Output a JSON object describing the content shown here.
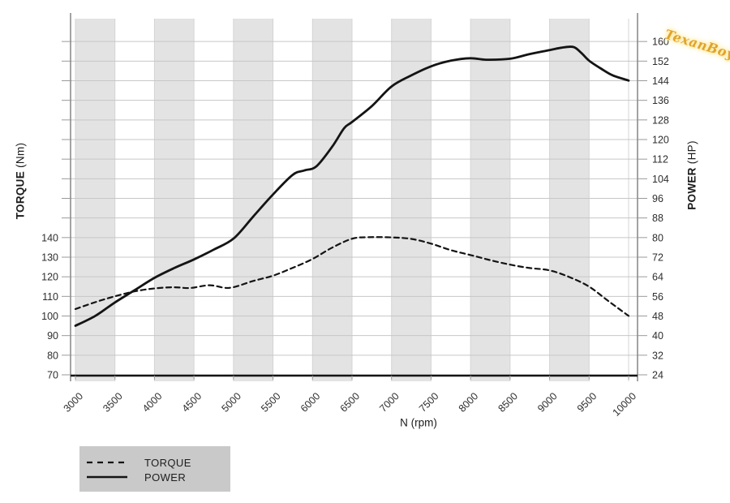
{
  "watermark": {
    "text": "TexanBoy"
  },
  "legend": {
    "items": [
      {
        "label": "TORQUE",
        "line_style": "dashed"
      },
      {
        "label": "POWER",
        "line_style": "solid"
      }
    ]
  },
  "colors": {
    "curve": "#141414",
    "band": "#e3e3e3",
    "grid_h": "#c7c7c7",
    "grid_v": "#d4d4d4",
    "axis": "#666666",
    "tick": "#9a9a9a",
    "baseline": "#141414",
    "tick_label": "#2e2e2e",
    "legend_bg": "#c9c9c9",
    "watermark": "#dfa32e"
  },
  "chart_data": {
    "type": "line",
    "title": "",
    "x_axis": {
      "label": "N (rpm)",
      "range": [
        3000,
        10000
      ],
      "tick_step": 500,
      "ticks": [
        3000,
        3500,
        4000,
        4500,
        5000,
        5500,
        6000,
        6500,
        7000,
        7500,
        8000,
        8500,
        9000,
        9500,
        10000
      ]
    },
    "y_left": {
      "label_bold": "TORQUE",
      "label_unit": "(Nm)",
      "tick_step": 10,
      "tick_labels": [
        70,
        80,
        90,
        100,
        110,
        120,
        130,
        140
      ]
    },
    "y_right": {
      "label_bold": "POWER",
      "label_unit": "(HP)",
      "tick_step": 8,
      "tick_labels": [
        24,
        32,
        40,
        48,
        56,
        64,
        72,
        80,
        88,
        96,
        104,
        112,
        120,
        128,
        136,
        144,
        152,
        160
      ]
    },
    "grid": {
      "horizontal": true,
      "vertical_bands_rpm": [
        [
          3000,
          3500
        ],
        [
          4000,
          4500
        ],
        [
          5000,
          5500
        ],
        [
          6000,
          6500
        ],
        [
          7000,
          7500
        ],
        [
          8000,
          8500
        ],
        [
          9000,
          9500
        ]
      ]
    },
    "legend_position": "bottom-left",
    "series": [
      {
        "name": "TORQUE",
        "axis": "left",
        "unit": "Nm",
        "style": "dashed",
        "points": [
          [
            3000,
            103.5
          ],
          [
            3250,
            107
          ],
          [
            3500,
            110
          ],
          [
            3750,
            112.5
          ],
          [
            4000,
            114
          ],
          [
            4250,
            114.6
          ],
          [
            4450,
            114.2
          ],
          [
            4700,
            115.6
          ],
          [
            4950,
            114.3
          ],
          [
            5250,
            117.8
          ],
          [
            5500,
            120.5
          ],
          [
            5750,
            124.5
          ],
          [
            6000,
            129
          ],
          [
            6250,
            134.8
          ],
          [
            6500,
            139.3
          ],
          [
            6700,
            140.1
          ],
          [
            7000,
            140
          ],
          [
            7250,
            139.2
          ],
          [
            7500,
            136.8
          ],
          [
            7750,
            133.5
          ],
          [
            8000,
            131
          ],
          [
            8250,
            128.4
          ],
          [
            8500,
            126.1
          ],
          [
            8750,
            124.4
          ],
          [
            9000,
            123.2
          ],
          [
            9250,
            119.8
          ],
          [
            9500,
            114.9
          ],
          [
            9750,
            107.4
          ],
          [
            10000,
            100
          ]
        ]
      },
      {
        "name": "POWER",
        "axis": "right",
        "unit": "HP",
        "style": "solid",
        "points": [
          [
            3000,
            44
          ],
          [
            3250,
            48
          ],
          [
            3500,
            53.5
          ],
          [
            3750,
            58.5
          ],
          [
            4000,
            63.5
          ],
          [
            4250,
            67.5
          ],
          [
            4500,
            71
          ],
          [
            4750,
            75
          ],
          [
            5000,
            79.5
          ],
          [
            5250,
            88.5
          ],
          [
            5500,
            97.5
          ],
          [
            5750,
            105.5
          ],
          [
            5900,
            107.3
          ],
          [
            6050,
            109
          ],
          [
            6250,
            117
          ],
          [
            6400,
            124.5
          ],
          [
            6500,
            127
          ],
          [
            6750,
            133.5
          ],
          [
            7000,
            141.5
          ],
          [
            7250,
            146
          ],
          [
            7500,
            149.7
          ],
          [
            7750,
            152
          ],
          [
            8000,
            153
          ],
          [
            8200,
            152.4
          ],
          [
            8500,
            152.8
          ],
          [
            8750,
            154.7
          ],
          [
            9000,
            156.3
          ],
          [
            9150,
            157.3
          ],
          [
            9300,
            157.6
          ],
          [
            9400,
            155.2
          ],
          [
            9500,
            152
          ],
          [
            9650,
            148.8
          ],
          [
            9800,
            146
          ],
          [
            10000,
            143.9
          ]
        ]
      }
    ]
  }
}
